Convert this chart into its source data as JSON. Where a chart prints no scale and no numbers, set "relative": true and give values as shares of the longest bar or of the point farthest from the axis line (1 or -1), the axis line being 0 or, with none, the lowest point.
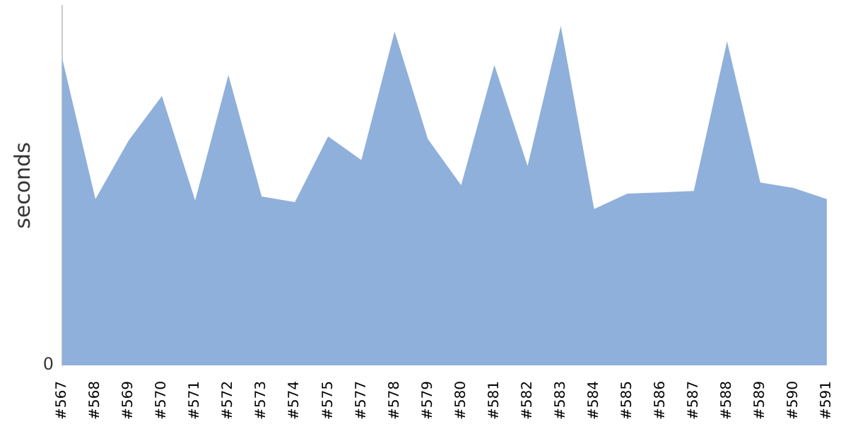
{
  "chart_data": {
    "type": "area",
    "relative": true,
    "ylabel": "seconds",
    "annotations": [
      "0"
    ],
    "categories": [
      "#567",
      "#568",
      "#569",
      "#570",
      "#571",
      "#572",
      "#573",
      "#574",
      "#575",
      "#577",
      "#578",
      "#579",
      "#580",
      "#581",
      "#582",
      "#583",
      "#584",
      "#585",
      "#586",
      "#587",
      "#588",
      "#589",
      "#590",
      "#591"
    ],
    "series": [
      {
        "color": "#8fb0da",
        "values": [
          0.905,
          0.49,
          0.663,
          0.794,
          0.486,
          0.856,
          0.498,
          0.481,
          0.675,
          0.605,
          0.984,
          0.667,
          0.531,
          0.885,
          0.588,
          1,
          0.461,
          0.506,
          0.51,
          0.514,
          0.955,
          0.539,
          0.523,
          0.49
        ]
      }
    ]
  }
}
